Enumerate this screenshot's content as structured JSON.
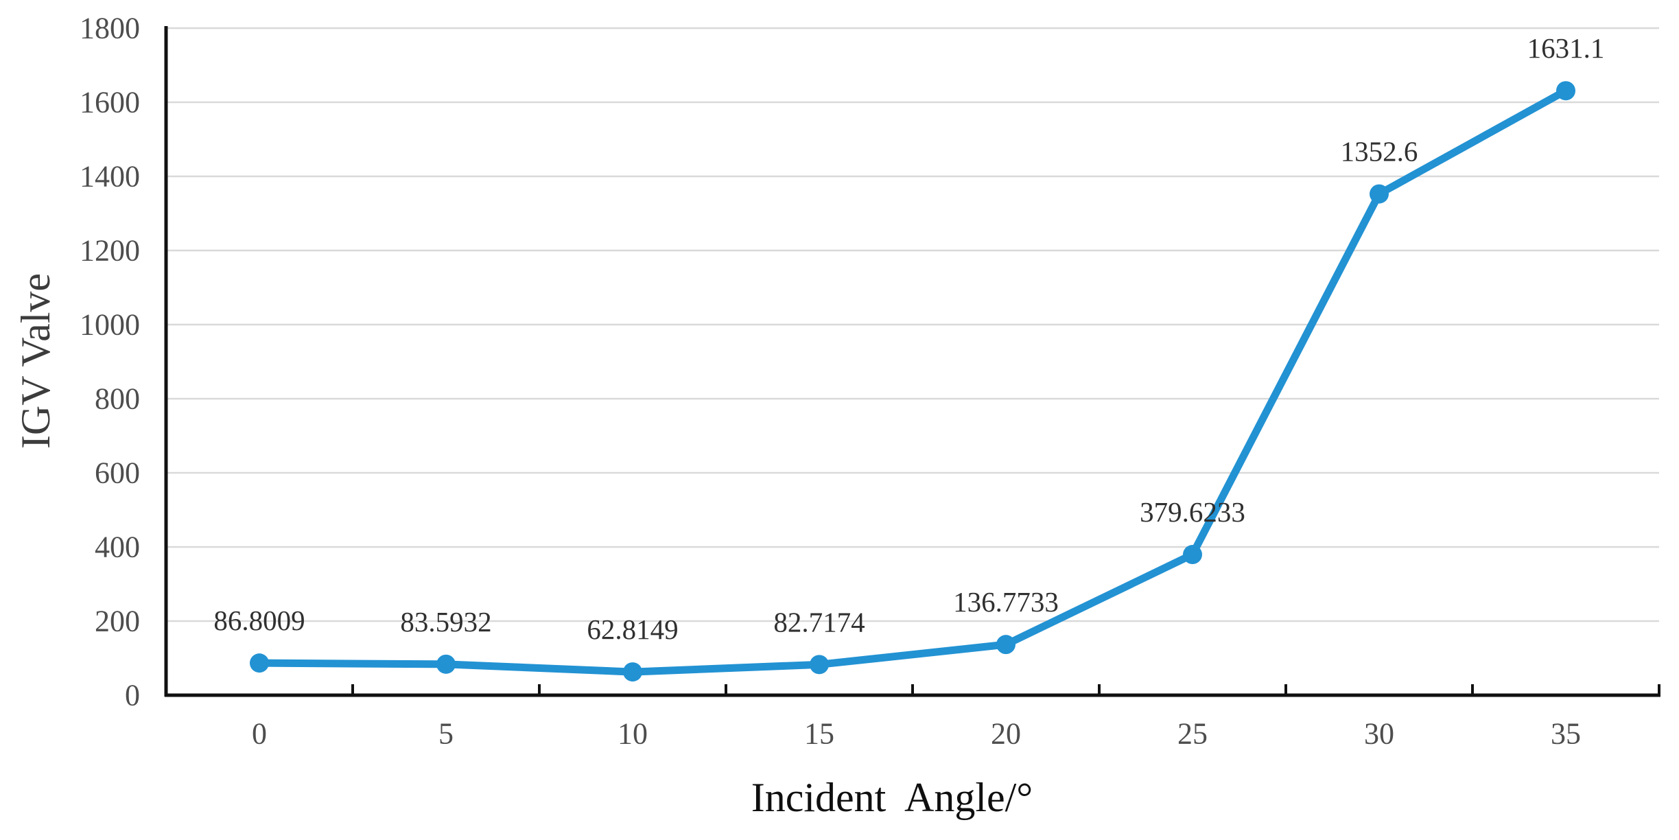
{
  "page": {
    "background": "#ffffff"
  },
  "chart_data": {
    "type": "line",
    "title": "",
    "xlabel": "Incident  Angle/°",
    "ylabel": "IGV Valve",
    "categories": [
      "0",
      "5",
      "10",
      "15",
      "20",
      "25",
      "30",
      "35"
    ],
    "x_values": [
      0,
      5,
      10,
      15,
      20,
      25,
      30,
      35
    ],
    "series": [
      {
        "name": "IGV Valve",
        "values": [
          86.8009,
          83.5932,
          62.8149,
          82.7174,
          136.7733,
          379.6233,
          1352.6,
          1631.1
        ],
        "data_labels": [
          "86.8009",
          "83.5932",
          "62.8149",
          "82.7174",
          "136.7733",
          "379.6233",
          "1352.6",
          "1631.1"
        ]
      }
    ],
    "ylim": [
      0,
      1800
    ],
    "ytick_step": 200,
    "ytick_labels": [
      "0",
      "200",
      "400",
      "600",
      "800",
      "1000",
      "1200",
      "1400",
      "1600",
      "1800"
    ],
    "grid": "horizontal",
    "legend_position": "none",
    "tick_marks": "inside-between-categories",
    "colors": {
      "line": "#2292d3",
      "marker": "#2292d3",
      "gridline": "#d9d9d9",
      "axis": "#111111",
      "tick_label": "#4d4d4d",
      "data_label": "#303030",
      "y_axis_title": "#3c3c3c",
      "x_axis_title": "#0f0f0f"
    }
  }
}
